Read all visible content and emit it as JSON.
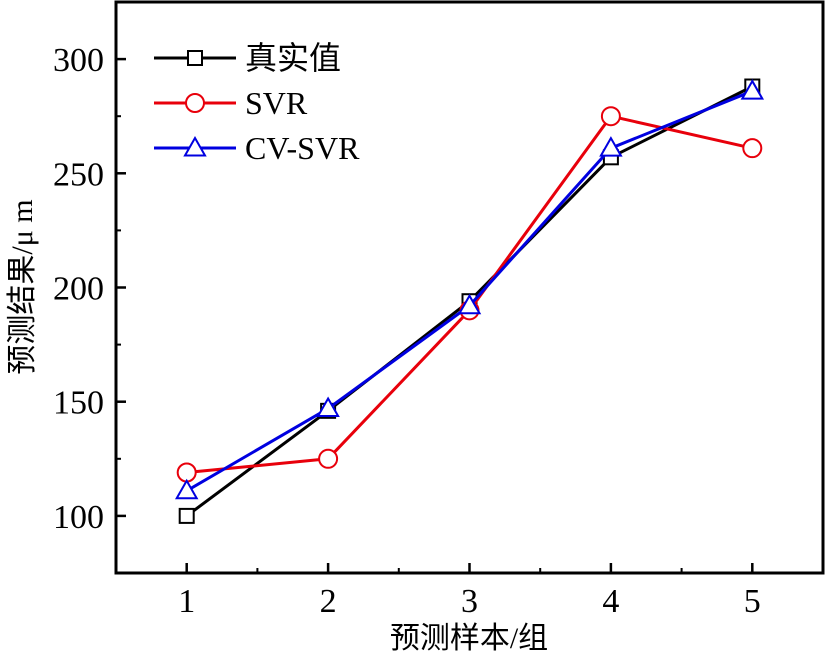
{
  "chart_data": {
    "type": "line",
    "xlabel": "预测样本/组",
    "ylabel": "预测结果/μ m",
    "x": [
      1,
      2,
      3,
      4,
      5
    ],
    "xlim": [
      0.5,
      5.5
    ],
    "ylim": [
      75,
      325
    ],
    "xticks": [
      "1",
      "2",
      "3",
      "4",
      "5"
    ],
    "yticks": [
      "100",
      "150",
      "200",
      "250",
      "300"
    ],
    "grid": false,
    "legend_position": "top-left",
    "series": [
      {
        "name": "真实值",
        "values": [
          100,
          146,
          194,
          257,
          288
        ],
        "color": "#000000",
        "marker": "square"
      },
      {
        "name": "SVR",
        "values": [
          119,
          125,
          190,
          275,
          261
        ],
        "color": "#e8000b",
        "marker": "circle"
      },
      {
        "name": "CV-SVR",
        "values": [
          111,
          147,
          192,
          261,
          286
        ],
        "color": "#0000e0",
        "marker": "triangle"
      }
    ]
  }
}
